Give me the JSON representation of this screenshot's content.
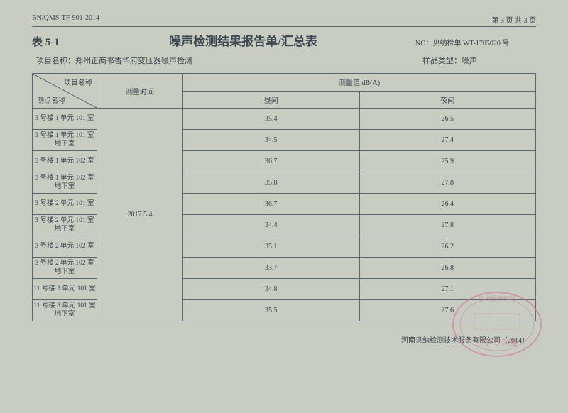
{
  "header": {
    "doc_code": "BN/QMS-TF-901-2014",
    "page_info": "第 3 页 共 3 页",
    "table_num": "表 5-1",
    "title": "噪声检测结果报告单/汇总表",
    "doc_no_label": "NO：贝纳检单",
    "doc_no_value": "WT-1705020 号",
    "project_label": "项目名称：",
    "project_name": "郑州正商书香华府变压器噪声检测",
    "sample_label": "样品类型：",
    "sample_type": "噪声"
  },
  "table": {
    "diag_top": "项目名称",
    "diag_bottom": "测点名称",
    "col_time": "测量时间",
    "col_value": "测量值 dB(A)",
    "col_day": "昼间",
    "col_night": "夜间",
    "time_value": "2017.5.4",
    "rows": [
      {
        "point": "3 号楼 1 单元 101 室",
        "day": "35.4",
        "night": "26.5"
      },
      {
        "point": "3 号楼 1 单元 101 室地下室",
        "day": "34.5",
        "night": "27.4"
      },
      {
        "point": "3 号楼 1 单元 102 室",
        "day": "36.7",
        "night": "25.9"
      },
      {
        "point": "3 号楼 1 单元 102 室地下室",
        "day": "35.8",
        "night": "27.8"
      },
      {
        "point": "3 号楼 2 单元 101 室",
        "day": "36.7",
        "night": "26.4"
      },
      {
        "point": "3 号楼 2 单元 101 室地下室",
        "day": "34.4",
        "night": "27.8"
      },
      {
        "point": "3 号楼 2 单元 102 室",
        "day": "35.1",
        "night": "26.2"
      },
      {
        "point": "3 号楼 2 单元 102 室地下室",
        "day": "33.7",
        "night": "26.8"
      },
      {
        "point": "11 号楼 3 单元 101 室",
        "day": "34.8",
        "night": "27.1"
      },
      {
        "point": "11 号楼 3 单元 101 室地下室",
        "day": "35.5",
        "night": "27.6"
      }
    ]
  },
  "footer": {
    "company": "河南贝纳检测技术服务有限公司（2014）"
  },
  "stamp": {
    "outer_text": "技术服务有限",
    "inner_text": "业务专用章",
    "color": "#c97a9a"
  },
  "colors": {
    "bg": "#c9cdc1",
    "text": "#3a4550",
    "border": "#5a6570"
  }
}
